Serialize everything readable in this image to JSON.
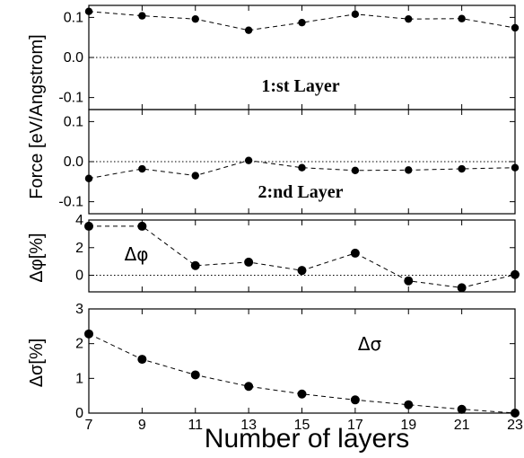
{
  "chart_data": {
    "type": "line",
    "x": [
      7,
      9,
      11,
      13,
      15,
      17,
      19,
      21,
      23
    ],
    "xlabel": "Number of layers",
    "shared_ylabel": "Force [eV/Angstrom]",
    "panels": [
      {
        "id": "force-1st",
        "annotation": "1:st Layer",
        "ylabel": "",
        "ylim": [
          -0.13,
          0.13
        ],
        "yticks": [
          0.1,
          0.0,
          -0.1
        ],
        "ytick_labels": [
          "0.1",
          "0.0",
          "-0.1"
        ],
        "zero_line": true,
        "values": [
          0.115,
          0.104,
          0.096,
          0.068,
          0.087,
          0.108,
          0.096,
          0.097,
          0.074
        ]
      },
      {
        "id": "force-2nd",
        "annotation": "2:nd Layer",
        "ylabel": "",
        "ylim": [
          -0.13,
          0.13
        ],
        "yticks": [
          0.1,
          0.0,
          -0.1
        ],
        "ytick_labels": [
          "0.1",
          "0.0",
          "-0.1"
        ],
        "zero_line": true,
        "values": [
          -0.042,
          -0.018,
          -0.035,
          0.003,
          -0.015,
          -0.022,
          -0.021,
          -0.018,
          -0.015
        ]
      },
      {
        "id": "delta-phi",
        "annotation": "Δφ",
        "ylabel": "Δφ[%]",
        "ylim": [
          -1.2,
          4.0
        ],
        "yticks": [
          4,
          2,
          0
        ],
        "ytick_labels": [
          "4",
          "2",
          "0"
        ],
        "zero_line": true,
        "values": [
          3.55,
          3.55,
          0.7,
          0.95,
          0.35,
          1.6,
          -0.4,
          -0.9,
          0.05
        ]
      },
      {
        "id": "delta-sigma",
        "annotation": "Δσ",
        "ylabel": "Δσ[%]",
        "ylim": [
          0,
          3
        ],
        "yticks": [
          3,
          2,
          1,
          0
        ],
        "ytick_labels": [
          "3",
          "2",
          "1",
          "0"
        ],
        "zero_line": false,
        "values": [
          2.28,
          1.55,
          1.1,
          0.77,
          0.55,
          0.38,
          0.24,
          0.11,
          0.0
        ]
      }
    ]
  }
}
